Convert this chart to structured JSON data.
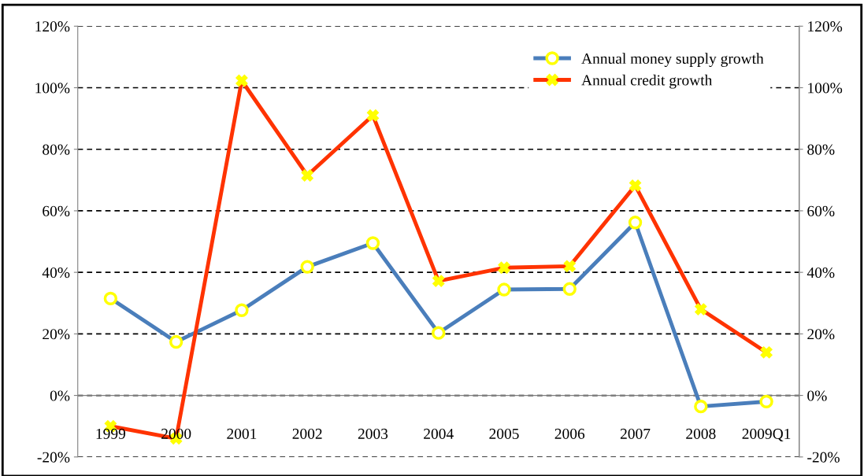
{
  "chart_data": {
    "type": "line",
    "categories": [
      "1999",
      "2000",
      "2001",
      "2002",
      "2003",
      "2004",
      "2005",
      "2006",
      "2007",
      "2008",
      "2009Q1"
    ],
    "series": [
      {
        "name": "Annual money supply growth",
        "color": "#4a7ebb",
        "marker": "circle",
        "values": [
          31.5,
          17.4,
          27.7,
          41.8,
          49.5,
          20.3,
          34.4,
          34.6,
          56.2,
          -3.6,
          -2
        ]
      },
      {
        "name": "Annual credit growth",
        "color": "#ff3300",
        "marker": "cross",
        "values": [
          -10,
          -14,
          102.3,
          71.5,
          91,
          37.2,
          41.5,
          42,
          68.2,
          28,
          14
        ]
      }
    ],
    "ylim": [
      -20,
      120
    ],
    "yticks": [
      {
        "value": -20,
        "label": "-20%"
      },
      {
        "value": 0,
        "label": "0%"
      },
      {
        "value": 20,
        "label": "20%"
      },
      {
        "value": 40,
        "label": "40%"
      },
      {
        "value": 60,
        "label": "60%"
      },
      {
        "value": 80,
        "label": "80%"
      },
      {
        "value": 100,
        "label": "100%"
      },
      {
        "value": 120,
        "label": "120%"
      }
    ],
    "y2lim": [
      -20,
      120
    ],
    "y2ticks": [
      {
        "value": -20,
        "label": "-20%"
      },
      {
        "value": 0,
        "label": "0%"
      },
      {
        "value": 20,
        "label": "20%"
      },
      {
        "value": 40,
        "label": "40%"
      },
      {
        "value": 60,
        "label": "60%"
      },
      {
        "value": 80,
        "label": "80%"
      },
      {
        "value": 100,
        "label": "100%"
      },
      {
        "value": 120,
        "label": "120%"
      }
    ],
    "grid": "y",
    "legend": "top right",
    "line_style": "solid"
  }
}
